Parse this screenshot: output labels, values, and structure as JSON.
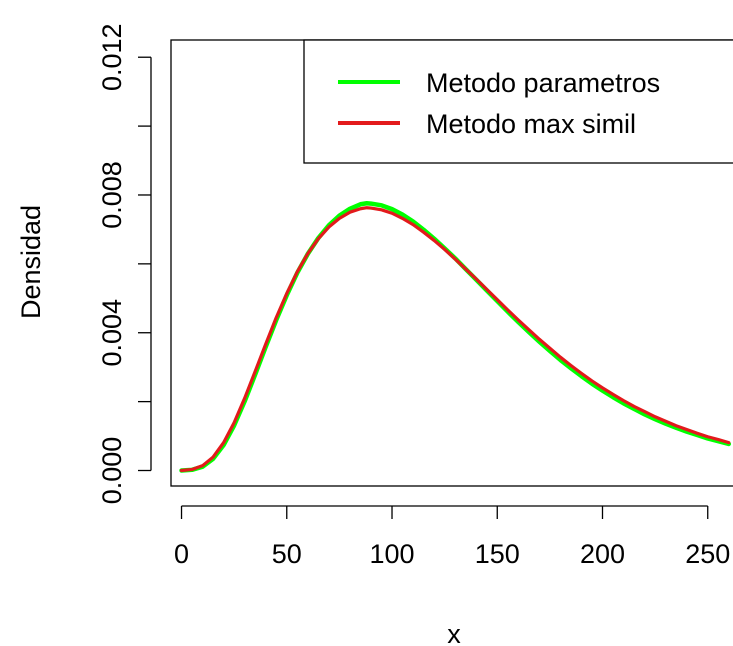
{
  "chart_data": {
    "type": "line",
    "xlabel": "x",
    "ylabel": "Densidad",
    "xlim": [
      -5,
      262
    ],
    "ylim": [
      -0.00045,
      0.0125
    ],
    "x_ticks": [
      {
        "value": 0,
        "label": "0"
      },
      {
        "value": 50,
        "label": "50"
      },
      {
        "value": 100,
        "label": "100"
      },
      {
        "value": 150,
        "label": "150"
      },
      {
        "value": 200,
        "label": "200"
      },
      {
        "value": 250,
        "label": "250"
      }
    ],
    "y_ticks": [
      {
        "value": 0.0,
        "label": "0.000"
      },
      {
        "value": 0.002,
        "label": ""
      },
      {
        "value": 0.004,
        "label": "0.004"
      },
      {
        "value": 0.006,
        "label": ""
      },
      {
        "value": 0.008,
        "label": "0.008"
      },
      {
        "value": 0.01,
        "label": ""
      },
      {
        "value": 0.012,
        "label": "0.012"
      }
    ],
    "legend_position": "top-right",
    "x": [
      0,
      5,
      10,
      15,
      20,
      25,
      30,
      35,
      40,
      45,
      50,
      55,
      60,
      65,
      70,
      75,
      80,
      85,
      88,
      90,
      95,
      100,
      105,
      110,
      115,
      120,
      125,
      130,
      135,
      140,
      145,
      150,
      155,
      160,
      165,
      170,
      175,
      180,
      185,
      190,
      195,
      200,
      205,
      210,
      215,
      220,
      225,
      230,
      235,
      240,
      245,
      250,
      255,
      260
    ],
    "series": [
      {
        "name": "Metodo parametros",
        "color": "#00ff00",
        "values": [
          0.0,
          2e-05,
          0.00011,
          0.00034,
          0.00074,
          0.00131,
          0.00201,
          0.00279,
          0.00359,
          0.00437,
          0.00509,
          0.00574,
          0.00629,
          0.00675,
          0.00712,
          0.0074,
          0.0076,
          0.00773,
          0.00776,
          0.00775,
          0.0077,
          0.00759,
          0.00743,
          0.00723,
          0.00699,
          0.00673,
          0.00645,
          0.00616,
          0.00585,
          0.00554,
          0.00523,
          0.00492,
          0.00461,
          0.00431,
          0.00402,
          0.00374,
          0.00347,
          0.00321,
          0.00297,
          0.00274,
          0.00252,
          0.00232,
          0.00213,
          0.00195,
          0.00179,
          0.00163,
          0.00149,
          0.00136,
          0.00124,
          0.00113,
          0.00103,
          0.00093,
          0.00085,
          0.00077
        ]
      },
      {
        "name": "Metodo max simil",
        "color": "#e31a1c",
        "values": [
          0.0,
          3e-05,
          0.00014,
          0.00039,
          0.00081,
          0.00139,
          0.0021,
          0.00288,
          0.00367,
          0.00444,
          0.00514,
          0.00577,
          0.0063,
          0.00673,
          0.00707,
          0.00732,
          0.0075,
          0.0076,
          0.00763,
          0.00762,
          0.00757,
          0.00747,
          0.00732,
          0.00714,
          0.00692,
          0.00668,
          0.00642,
          0.00614,
          0.00585,
          0.00556,
          0.00526,
          0.00496,
          0.00466,
          0.00437,
          0.00409,
          0.00381,
          0.00355,
          0.00329,
          0.00305,
          0.00282,
          0.0026,
          0.0024,
          0.00221,
          0.00203,
          0.00186,
          0.00171,
          0.00156,
          0.00143,
          0.0013,
          0.00119,
          0.00108,
          0.00098,
          0.0009,
          0.00081
        ]
      }
    ]
  }
}
